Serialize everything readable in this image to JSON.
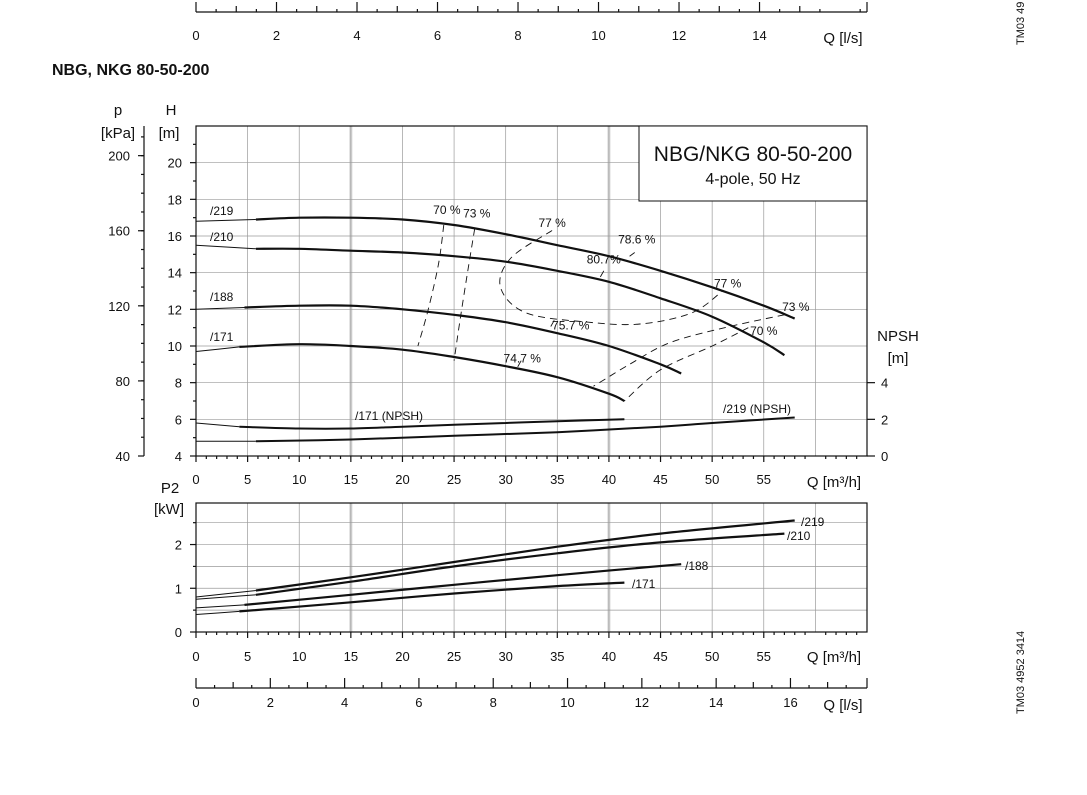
{
  "page": {
    "title": "NBG, NKG 80-50-200",
    "side_code_top": "TM03 49",
    "side_code_bottom": "TM03 4952 3414"
  },
  "colors": {
    "line": "#111111",
    "grid": "#9a9a9a",
    "band": "#d6d6d6"
  },
  "chart_data": [
    {
      "id": "top-fragment",
      "type": "axis",
      "x_ticks": [
        0,
        2,
        4,
        6,
        8,
        10,
        12,
        14
      ],
      "xlim": [
        0,
        16.67
      ],
      "xlabel": "Q [l/s]"
    },
    {
      "id": "head-npsh",
      "type": "line",
      "legend": {
        "title": "NBG/NKG 80-50-200",
        "subtitle": "4-pole, 50 Hz",
        "placement": "top-right"
      },
      "xlabel": "Q [m³/h]",
      "xlim": [
        0,
        65
      ],
      "x_ticks": [
        0,
        5,
        10,
        15,
        20,
        25,
        30,
        35,
        40,
        45,
        50,
        55
      ],
      "y_head": {
        "label_top": "H",
        "label_unit": "[m]",
        "lim": [
          4,
          22
        ],
        "ticks": [
          4,
          6,
          8,
          10,
          12,
          14,
          16,
          18,
          20
        ]
      },
      "y_pressure": {
        "label_top": "p",
        "label_unit": "[kPa]",
        "lim": [
          40,
          215.8
        ],
        "ticks": [
          40,
          80,
          120,
          160,
          200
        ]
      },
      "y_npsh": {
        "label_top": "NPSH",
        "label_unit": "[m]",
        "lim": [
          0,
          18
        ],
        "ticks": [
          0,
          2,
          4
        ]
      },
      "grid": true,
      "series": [
        {
          "name": "/219",
          "points": [
            [
              0,
              16.8
            ],
            [
              5.8,
              16.9
            ],
            [
              10,
              17.0
            ],
            [
              15,
              17.0
            ],
            [
              20,
              16.9
            ],
            [
              25,
              16.6
            ],
            [
              30,
              16.1
            ],
            [
              35,
              15.5
            ],
            [
              40,
              14.9
            ],
            [
              45,
              14.1
            ],
            [
              50,
              13.2
            ],
            [
              55,
              12.2
            ],
            [
              58,
              11.5
            ]
          ]
        },
        {
          "name": "/210",
          "points": [
            [
              0,
              15.5
            ],
            [
              5.8,
              15.3
            ],
            [
              10,
              15.3
            ],
            [
              15,
              15.2
            ],
            [
              20,
              15.1
            ],
            [
              25,
              14.9
            ],
            [
              30,
              14.6
            ],
            [
              35,
              14.1
            ],
            [
              40,
              13.5
            ],
            [
              45,
              12.6
            ],
            [
              50,
              11.6
            ],
            [
              55,
              10.2
            ],
            [
              57,
              9.5
            ]
          ]
        },
        {
          "name": "/188",
          "points": [
            [
              0,
              12.0
            ],
            [
              4.7,
              12.1
            ],
            [
              10,
              12.2
            ],
            [
              15,
              12.2
            ],
            [
              20,
              12.0
            ],
            [
              25,
              11.7
            ],
            [
              30,
              11.3
            ],
            [
              35,
              10.7
            ],
            [
              40,
              10.0
            ],
            [
              45,
              9.0
            ],
            [
              47,
              8.5
            ]
          ]
        },
        {
          "name": "/171",
          "points": [
            [
              0,
              9.7
            ],
            [
              4.2,
              9.95
            ],
            [
              10,
              10.1
            ],
            [
              15,
              10.0
            ],
            [
              20,
              9.8
            ],
            [
              25,
              9.4
            ],
            [
              30,
              8.9
            ],
            [
              35,
              8.3
            ],
            [
              40,
              7.4
            ],
            [
              41.5,
              7.0
            ]
          ]
        }
      ],
      "npsh_series": [
        {
          "name": "/171 (NPSH)",
          "points": [
            [
              0,
              1.8
            ],
            [
              4.2,
              1.6
            ],
            [
              10,
              1.5
            ],
            [
              15,
              1.5
            ],
            [
              20,
              1.6
            ],
            [
              25,
              1.7
            ],
            [
              30,
              1.8
            ],
            [
              35,
              1.9
            ],
            [
              41.5,
              2.0
            ]
          ]
        },
        {
          "name": "/219 (NPSH)",
          "points": [
            [
              0,
              0.8
            ],
            [
              5.8,
              0.8
            ],
            [
              15,
              0.9
            ],
            [
              25,
              1.1
            ],
            [
              35,
              1.3
            ],
            [
              45,
              1.6
            ],
            [
              50,
              1.8
            ],
            [
              58,
              2.1
            ]
          ]
        }
      ],
      "efficiency_labels": [
        {
          "text": "70 %",
          "x": 24.3,
          "y": 17.2
        },
        {
          "text": "73 %",
          "x": 27.2,
          "y": 17.0
        },
        {
          "text": "77 %",
          "x": 34.5,
          "y": 16.5
        },
        {
          "text": "78.6 %",
          "x": 42.7,
          "y": 15.6
        },
        {
          "text": "80.7%",
          "x": 39.5,
          "y": 14.5
        },
        {
          "text": "77 %",
          "x": 51.5,
          "y": 13.2
        },
        {
          "text": "73 %",
          "x": 58.1,
          "y": 11.9
        },
        {
          "text": "70 %",
          "x": 55.0,
          "y": 10.6
        },
        {
          "text": "75.7 %",
          "x": 36.3,
          "y": 10.9
        },
        {
          "text": "74.7 %",
          "x": 31.6,
          "y": 9.1
        }
      ]
    },
    {
      "id": "power",
      "type": "line",
      "xlabel": "Q [m³/h]",
      "xlim": [
        0,
        65
      ],
      "x_ticks": [
        0,
        5,
        10,
        15,
        20,
        25,
        30,
        35,
        40,
        45,
        50,
        55
      ],
      "ylabel_top": "P2",
      "ylabel_unit": "[kW]",
      "ylim": [
        0,
        2.95
      ],
      "y_ticks": [
        0,
        1,
        2
      ],
      "grid": true,
      "series": [
        {
          "name": "/219",
          "points": [
            [
              0,
              0.8
            ],
            [
              5.8,
              0.95
            ],
            [
              15,
              1.25
            ],
            [
              25,
              1.6
            ],
            [
              35,
              1.95
            ],
            [
              45,
              2.25
            ],
            [
              58,
              2.55
            ]
          ]
        },
        {
          "name": "/210",
          "points": [
            [
              0,
              0.75
            ],
            [
              5.8,
              0.85
            ],
            [
              15,
              1.15
            ],
            [
              25,
              1.5
            ],
            [
              35,
              1.8
            ],
            [
              45,
              2.05
            ],
            [
              57,
              2.25
            ]
          ]
        },
        {
          "name": "/188",
          "points": [
            [
              0,
              0.55
            ],
            [
              4.7,
              0.62
            ],
            [
              15,
              0.85
            ],
            [
              25,
              1.08
            ],
            [
              35,
              1.3
            ],
            [
              47,
              1.55
            ]
          ]
        },
        {
          "name": "/171",
          "points": [
            [
              0,
              0.4
            ],
            [
              4.2,
              0.47
            ],
            [
              15,
              0.68
            ],
            [
              25,
              0.88
            ],
            [
              35,
              1.05
            ],
            [
              41.5,
              1.13
            ]
          ]
        }
      ]
    },
    {
      "id": "flow-ls",
      "type": "axis",
      "x_ticks": [
        0,
        2,
        4,
        6,
        8,
        10,
        12,
        14,
        16
      ],
      "xlim": [
        0,
        18.06
      ],
      "xlabel": "Q [l/s]"
    }
  ]
}
